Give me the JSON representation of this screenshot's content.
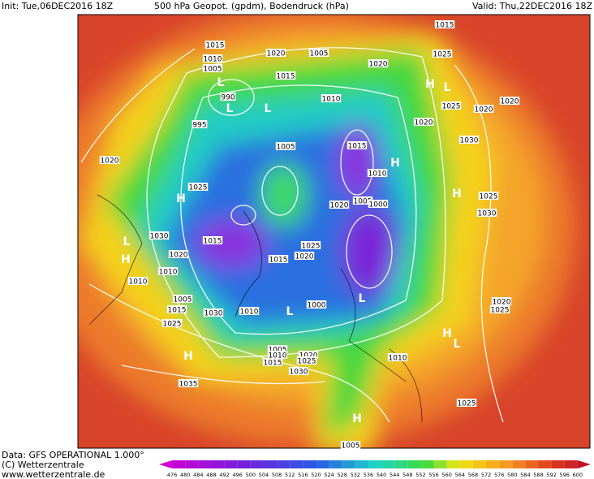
{
  "header": {
    "init": "Init: Tue,06DEC2016 18Z",
    "title": "500 hPa Geopot. (gpdm), Bodendruck (hPa)",
    "valid": "Valid: Thu,22DEC2016 18Z"
  },
  "footer": {
    "data": "Data: GFS OPERATIONAL 1.000°",
    "copyright": "(C) Wetterzentrale",
    "url": "www.wetterzentrale.de"
  },
  "colorbar": {
    "labels": [
      476,
      480,
      484,
      488,
      492,
      496,
      500,
      504,
      508,
      512,
      516,
      520,
      524,
      528,
      532,
      536,
      540,
      544,
      548,
      552,
      556,
      560,
      564,
      568,
      572,
      576,
      580,
      584,
      588,
      592,
      596,
      600
    ]
  },
  "map": {
    "labels": [
      "1015",
      "1020",
      "1005",
      "1020",
      "1015",
      "1025",
      "1010",
      "1005",
      "L",
      "990",
      "L",
      "995",
      "L",
      "1015",
      "1010",
      "H",
      "L",
      "1025",
      "1020",
      "1020",
      "1020",
      "1030",
      "1005",
      "1015",
      "H",
      "1010",
      "1020",
      "H",
      "1025",
      "1005",
      "1000",
      "1020",
      "H",
      "1025",
      "1030",
      "1030",
      "1015",
      "L",
      "H",
      "1020",
      "1025",
      "1015",
      "1020",
      "1010",
      "1010",
      "1005",
      "1015",
      "1030",
      "1010",
      "L",
      "1000",
      "L",
      "1020",
      "1025",
      "1025",
      "H",
      "1005",
      "1010",
      "1015",
      "1020",
      "1025",
      "1030",
      "1010",
      "H",
      "L",
      "1035",
      "1025",
      "H",
      "1005"
    ]
  }
}
